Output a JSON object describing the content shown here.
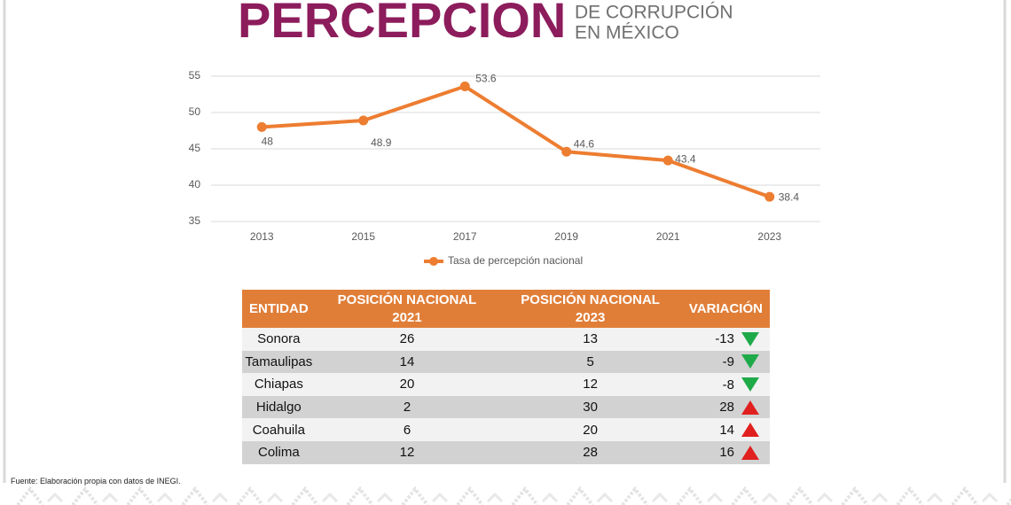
{
  "header": {
    "title": "PERCEPCION",
    "subtitle_lines": [
      "DE CORRUPCIÓN",
      "EN MÉXICO"
    ]
  },
  "chart_data": {
    "type": "line",
    "categories": [
      "2013",
      "2015",
      "2017",
      "2019",
      "2021",
      "2023"
    ],
    "series": [
      {
        "name": "Tasa de percepción nacional",
        "color": "#ed7d31",
        "values": [
          48,
          48.9,
          53.6,
          44.6,
          43.4,
          38.4
        ]
      }
    ],
    "ylim": [
      35,
      55
    ],
    "yticks": [
      35,
      40,
      45,
      50,
      55
    ],
    "grid": true,
    "legend": "bottom"
  },
  "table": {
    "header": [
      "ENTIDAD",
      "POSICIÓN NACIONAL 2021",
      "POSICIÓN NACIONAL 2023",
      "VARIACIÓN"
    ],
    "rows": [
      [
        "Sonora",
        26,
        13,
        -13
      ],
      [
        "Tamaulipas",
        14,
        5,
        -9
      ],
      [
        "Chiapas",
        20,
        12,
        -8
      ],
      [
        "Hidalgo",
        2,
        30,
        28
      ],
      [
        "Coahuila",
        6,
        20,
        14
      ],
      [
        "Colima",
        12,
        28,
        16
      ]
    ]
  },
  "source": "Fuente: Elaboración propia con datos de INEGI."
}
